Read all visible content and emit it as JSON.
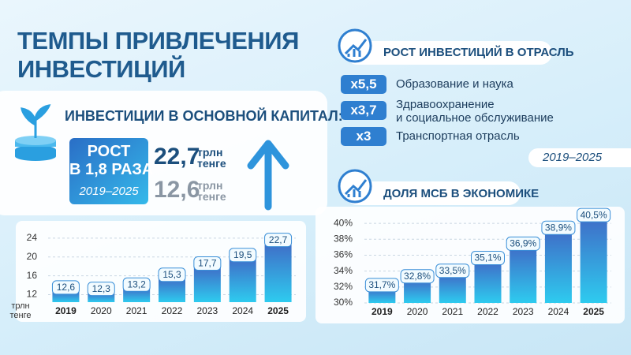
{
  "title_lines": [
    "ТЕМПЫ ПРИВЛЕЧЕНИЯ",
    "ИНВЕСТИЦИЙ"
  ],
  "investment": {
    "heading": "ИНВЕСТИЦИИ В ОСНОВНОЙ КАПИТАЛ:",
    "growth_lines": [
      "РОСТ",
      "В 1,8 РАЗА"
    ],
    "period": "2019–2025",
    "current": "22,7",
    "current_unit": "трлн тенге",
    "previous": "12,6",
    "previous_unit": "трлн тенге"
  },
  "sectors": {
    "heading": "РОСТ ИНВЕСТИЦИЙ В ОТРАСЛЬ",
    "period": "2019–2025",
    "items": [
      {
        "badge": "x5,5",
        "lines": [
          "Образование и наука"
        ]
      },
      {
        "badge": "x3,7",
        "lines": [
          "Здравоохранение",
          "и социальное обслуживание"
        ]
      },
      {
        "badge": "x3",
        "lines": [
          "Транспортная отрасль"
        ]
      }
    ]
  },
  "chart_data": [
    {
      "type": "bar",
      "ylabel": [
        "трлн",
        "тенге"
      ],
      "categories": [
        "2019",
        "2020",
        "2021",
        "2022",
        "2023",
        "2024",
        "2025"
      ],
      "values": [
        12.6,
        12.3,
        13.2,
        15.3,
        17.7,
        19.5,
        22.7
      ],
      "value_labels": [
        "12,6",
        "12,3",
        "13,2",
        "15,3",
        "17,7",
        "19,5",
        "22,7"
      ],
      "ylim": [
        10.4,
        26
      ],
      "yticks": [
        12,
        16,
        20,
        24
      ],
      "grid": true,
      "color": "#3a8fd8"
    },
    {
      "type": "bar",
      "title": "ДОЛЯ МСБ В ЭКОНОМИКЕ",
      "categories": [
        "2019",
        "2020",
        "2021",
        "2022",
        "2023",
        "2024",
        "2025"
      ],
      "values": [
        31.7,
        32.8,
        33.5,
        35.1,
        36.9,
        38.9,
        40.5
      ],
      "value_labels": [
        "31,7%",
        "32,8%",
        "33,5%",
        "35,1%",
        "36,9%",
        "38,9%",
        "40,5%"
      ],
      "ylim": [
        30,
        41.5
      ],
      "yticks": [
        {
          "value": 30,
          "label": "30%"
        },
        {
          "value": 32,
          "label": "32%"
        },
        {
          "value": 34,
          "label": "34%"
        },
        {
          "value": 36,
          "label": "36%"
        },
        {
          "value": 38,
          "label": "38%"
        },
        {
          "value": 40,
          "label": "40%"
        }
      ],
      "grid": true,
      "color": "#3a8fd8"
    }
  ]
}
